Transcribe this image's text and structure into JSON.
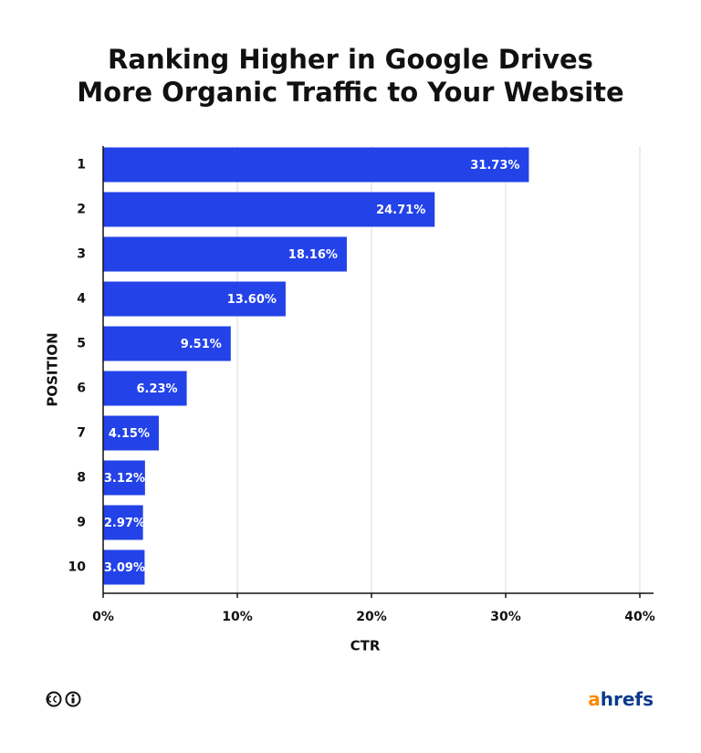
{
  "chart_data": {
    "type": "hbar",
    "title": [
      "Ranking Higher in Google Drives",
      "More Organic Traffic to Your Website"
    ],
    "categories": [
      "1",
      "2",
      "3",
      "4",
      "5",
      "6",
      "7",
      "8",
      "9",
      "10"
    ],
    "values": [
      31.73,
      24.71,
      18.16,
      13.6,
      9.51,
      6.23,
      4.15,
      3.12,
      2.97,
      3.09
    ],
    "value_labels": [
      "31.73%",
      "24.71%",
      "18.16%",
      "13.60%",
      "9.51%",
      "6.23%",
      "4.15%",
      "3.12%",
      "2.97%",
      "3.09%"
    ],
    "color": "#2342e8",
    "xlim": [
      0,
      40
    ],
    "xticks": [
      {
        "value": 0,
        "label": "0%"
      },
      {
        "value": 10,
        "label": "10%"
      },
      {
        "value": 20,
        "label": "20%"
      },
      {
        "value": 30,
        "label": "30%"
      },
      {
        "value": 40,
        "label": "40%"
      }
    ],
    "xlabel": "CTR",
    "ylabel": "POSITION",
    "grid": true,
    "brand": [
      "a",
      "hrefs"
    ]
  }
}
